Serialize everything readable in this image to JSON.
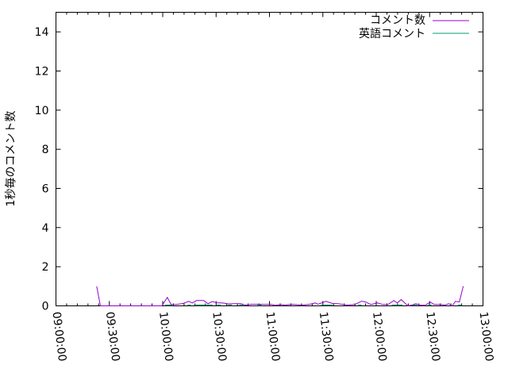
{
  "chart_data": {
    "type": "line",
    "title": "",
    "xlabel": "",
    "ylabel": "1秒毎のコメント数",
    "xlim": [
      "09:00:00",
      "13:00:00"
    ],
    "ylim": [
      0,
      15
    ],
    "x_ticks": [
      "09:00:00",
      "09:30:00",
      "10:00:00",
      "10:30:00",
      "11:00:00",
      "11:30:00",
      "12:00:00",
      "12:30:00",
      "13:00:00"
    ],
    "y_ticks": [
      "0",
      "2",
      "4",
      "6",
      "8",
      "10",
      "12",
      "14"
    ],
    "grid": false,
    "legend_position": "top-right",
    "series": [
      {
        "name": "コメント数",
        "color": "#9400d3",
        "points": [
          [
            "09:22:54",
            1.0
          ],
          [
            "09:25:00",
            0
          ],
          [
            "09:51:00",
            0
          ],
          [
            "09:59:30",
            0
          ],
          [
            "10:02:36",
            0.43
          ],
          [
            "10:04:42",
            0.07
          ],
          [
            "10:07:42",
            0.07
          ],
          [
            "10:11:24",
            0.12
          ],
          [
            "10:14:36",
            0.23
          ],
          [
            "10:16:36",
            0.15
          ],
          [
            "10:19:06",
            0.27
          ],
          [
            "10:23:00",
            0.27
          ],
          [
            "10:25:30",
            0.11
          ],
          [
            "10:27:42",
            0.22
          ],
          [
            "10:30:42",
            0.16
          ],
          [
            "10:34:24",
            0.14
          ],
          [
            "10:36:42",
            0.1
          ],
          [
            "10:41:00",
            0.11
          ],
          [
            "10:44:00",
            0.11
          ],
          [
            "10:46:18",
            0.04
          ],
          [
            "10:50:00",
            0.08
          ],
          [
            "10:54:30",
            0.08
          ],
          [
            "10:57:30",
            0.07
          ],
          [
            "11:00:24",
            0.08
          ],
          [
            "11:03:24",
            0.03
          ],
          [
            "11:06:24",
            0.07
          ],
          [
            "11:08:36",
            0.04
          ],
          [
            "11:12:24",
            0.08
          ],
          [
            "11:18:18",
            0.04
          ],
          [
            "11:22:42",
            0.08
          ],
          [
            "11:25:42",
            0.15
          ],
          [
            "11:27:12",
            0.08
          ],
          [
            "11:31:42",
            0.23
          ],
          [
            "11:35:24",
            0.12
          ],
          [
            "11:38:24",
            0.11
          ],
          [
            "11:43:36",
            0.04
          ],
          [
            "11:48:00",
            0.07
          ],
          [
            "11:51:48",
            0.24
          ],
          [
            "11:54:00",
            0.2
          ],
          [
            "11:57:00",
            0.07
          ],
          [
            "12:00:42",
            0.15
          ],
          [
            "12:03:42",
            0.07
          ],
          [
            "12:06:36",
            0.07
          ],
          [
            "12:09:54",
            0.27
          ],
          [
            "12:11:48",
            0.15
          ],
          [
            "12:14:00",
            0.32
          ],
          [
            "12:17:48",
            0
          ],
          [
            "12:20:00",
            0.04
          ],
          [
            "12:22:12",
            0.11
          ],
          [
            "12:24:24",
            0.04
          ],
          [
            "12:27:30",
            0.03
          ],
          [
            "12:30:24",
            0.19
          ],
          [
            "12:32:36",
            0.07
          ],
          [
            "12:36:18",
            0.07
          ],
          [
            "12:38:36",
            0.04
          ],
          [
            "12:40:48",
            0.11
          ],
          [
            "12:42:42",
            0
          ],
          [
            "12:44:30",
            0.23
          ],
          [
            "12:46:42",
            0.2
          ],
          [
            "12:48:54",
            1.0
          ]
        ]
      },
      {
        "name": "英語コメント",
        "color": "#009e73",
        "segments": [
          [
            "10:01:24",
            "10:05:24",
            0.04
          ],
          [
            "10:14:00",
            "10:15:48",
            0.04
          ],
          [
            "10:18:00",
            "10:28:00",
            0.04
          ],
          [
            "10:30:30",
            "10:32:36",
            0.04
          ],
          [
            "10:36:42",
            "10:38:54",
            0.04
          ],
          [
            "10:43:00",
            "10:45:18",
            0.04
          ],
          [
            "10:53:18",
            "10:55:30",
            0.04
          ],
          [
            "11:29:00",
            "11:35:24",
            0.04
          ],
          [
            "11:49:48",
            "11:51:48",
            0.04
          ],
          [
            "12:08:48",
            "12:14:48",
            0.04
          ],
          [
            "12:20:42",
            "12:23:00",
            0.04
          ],
          [
            "12:29:00",
            "12:31:00",
            0.04
          ],
          [
            "12:46:00",
            "12:48:00",
            0.04
          ]
        ]
      }
    ]
  }
}
